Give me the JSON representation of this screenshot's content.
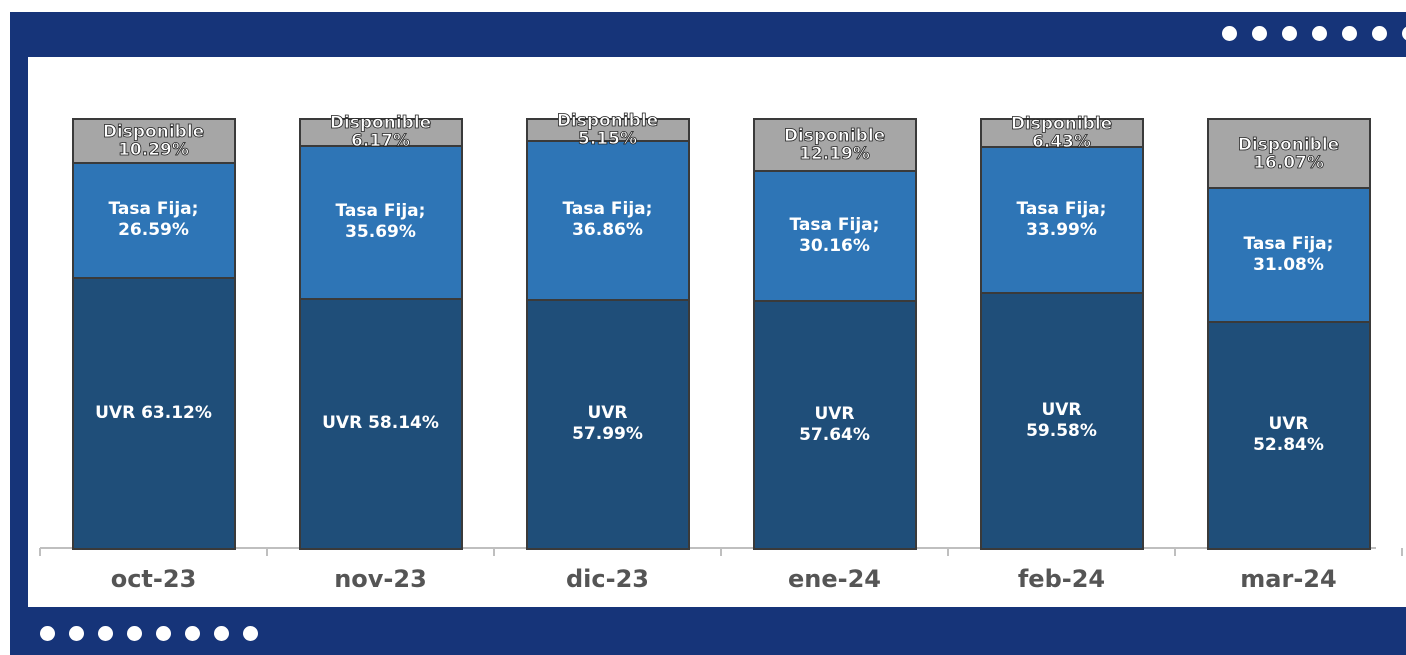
{
  "chart_data": {
    "type": "stacked_bar",
    "categories": [
      "oct-23",
      "nov-23",
      "dic-23",
      "ene-24",
      "feb-24",
      "mar-24"
    ],
    "ylim": [
      0,
      100
    ],
    "series": [
      {
        "color": "#1f4e79",
        "values": [
          63.12,
          58.14,
          57.99,
          57.64,
          59.58,
          52.84
        ],
        "value_labels": [
          "UVR 63.12%",
          "UVR 58.14%",
          "UVR\n57.99%",
          "UVR\n57.64%",
          "UVR\n59.58%",
          "UVR\n52.84%"
        ]
      },
      {
        "color": "#2e75b6",
        "values": [
          26.59,
          35.69,
          36.86,
          30.16,
          33.99,
          31.08
        ],
        "value_labels": [
          "Tasa Fija;\n26.59%",
          "Tasa Fija;\n35.69%",
          "Tasa Fija;\n36.86%",
          "Tasa Fija;\n30.16%",
          "Tasa Fija;\n33.99%",
          "Tasa Fija;\n31.08%"
        ]
      },
      {
        "color": "#a6a6a6",
        "values": [
          10.29,
          6.17,
          5.15,
          12.19,
          6.43,
          16.07
        ],
        "value_labels": [
          "Disponible\n10.29%",
          "Disponible\n6.17%",
          "Disponible\n5.15%",
          "Disponible\n12.19%",
          "Disponible\n6.43%",
          "Disponible\n16.07%"
        ]
      }
    ]
  }
}
